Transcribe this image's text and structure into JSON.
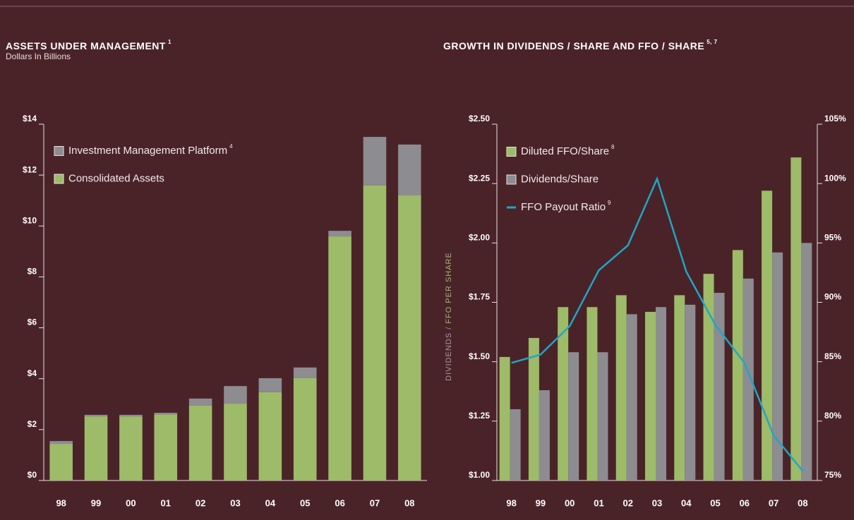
{
  "chart_data": [
    {
      "type": "stacked_bar",
      "title": "ASSETS UNDER MANAGEMENT",
      "title_note": "1",
      "subtitle": "Dollars In Billions",
      "categories": [
        "98",
        "99",
        "00",
        "01",
        "02",
        "03",
        "04",
        "05",
        "06",
        "07",
        "08"
      ],
      "series": [
        {
          "name": "Consolidated Assets",
          "color": "#9dbb69",
          "values": [
            1.44,
            2.52,
            2.52,
            2.6,
            2.94,
            3.02,
            3.47,
            4.02,
            9.59,
            11.59,
            11.2
          ]
        },
        {
          "name": "Investment Management Platform",
          "note": "4",
          "color": "#8d8c91",
          "values": [
            0.11,
            0.06,
            0.06,
            0.06,
            0.28,
            0.69,
            0.55,
            0.42,
            0.22,
            1.91,
            2.0
          ]
        }
      ],
      "ylim": [
        0,
        14
      ],
      "yticks": [
        {
          "value": 0,
          "label": "$0"
        },
        {
          "value": 2,
          "label": "$2"
        },
        {
          "value": 4,
          "label": "$4"
        },
        {
          "value": 6,
          "label": "$6"
        },
        {
          "value": 8,
          "label": "$8"
        },
        {
          "value": 10,
          "label": "$10"
        },
        {
          "value": 12,
          "label": "$12"
        },
        {
          "value": 14,
          "label": "$14"
        }
      ]
    },
    {
      "type": "bar_line",
      "title": "GROWTH IN DIVIDENDS / SHARE AND FFO / SHARE",
      "title_note": "5, 7",
      "y_label": [
        "DIVIDENDS / ",
        "FFO PER SHARE"
      ],
      "categories": [
        "98",
        "99",
        "00",
        "01",
        "02",
        "03",
        "04",
        "05",
        "06",
        "07",
        "08"
      ],
      "series": [
        {
          "name": "Diluted FFO/Share",
          "note": "8",
          "color": "#9dbb69",
          "values": [
            1.52,
            1.6,
            1.73,
            1.73,
            1.78,
            1.71,
            1.78,
            1.87,
            1.97,
            2.22,
            2.36
          ]
        },
        {
          "name": "Dividends/Share",
          "color": "#8d8c91",
          "values": [
            1.3,
            1.38,
            1.54,
            1.54,
            1.7,
            1.73,
            1.74,
            1.79,
            1.85,
            1.96,
            2.0
          ]
        },
        {
          "name": "FFO Payout Ratio",
          "note": "9",
          "color": "#20a6c6",
          "axis": "y2",
          "values": [
            84.9,
            85.6,
            88.0,
            92.7,
            94.8,
            100.4,
            92.6,
            88.1,
            84.9,
            78.8,
            75.8
          ]
        }
      ],
      "ylim": [
        1.0,
        2.5
      ],
      "yticks": [
        {
          "value": 1.0,
          "label": "$1.00"
        },
        {
          "value": 1.25,
          "label": "$1.25"
        },
        {
          "value": 1.5,
          "label": "$1.50"
        },
        {
          "value": 1.75,
          "label": "$1.75"
        },
        {
          "value": 2.0,
          "label": "$2.00"
        },
        {
          "value": 2.25,
          "label": "$2.25"
        },
        {
          "value": 2.5,
          "label": "$2.50"
        }
      ],
      "y2lim": [
        75,
        105
      ],
      "y2ticks": [
        {
          "value": 75,
          "label": "75%"
        },
        {
          "value": 80,
          "label": "80%"
        },
        {
          "value": 85,
          "label": "85%"
        },
        {
          "value": 90,
          "label": "90%"
        },
        {
          "value": 95,
          "label": "95%"
        },
        {
          "value": 100,
          "label": "100%"
        },
        {
          "value": 105,
          "label": "105%"
        }
      ]
    }
  ]
}
